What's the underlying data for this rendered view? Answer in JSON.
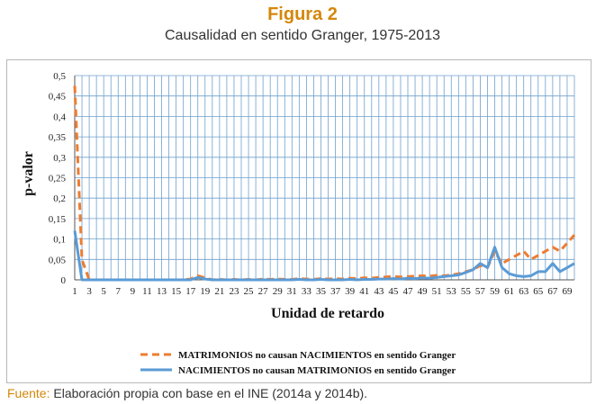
{
  "figure": {
    "title": "Figura 2",
    "subtitle": "Causalidad en sentido Granger, 1975-2013"
  },
  "source": {
    "label": "Fuente:",
    "text": " Elaboración propia con base en el INE (2014a y 2014b)."
  },
  "colors": {
    "title": "#d4870a",
    "grid": "#6fa0cc",
    "series_dashed": "#ed7d31",
    "series_solid": "#5b9bd5"
  },
  "chart_data": {
    "type": "line",
    "title": "",
    "xlabel": "Unidad de retardo",
    "ylabel": "p-valor",
    "x": [
      1,
      2,
      3,
      4,
      5,
      6,
      7,
      8,
      9,
      10,
      11,
      12,
      13,
      14,
      15,
      16,
      17,
      18,
      19,
      20,
      21,
      22,
      23,
      24,
      25,
      26,
      27,
      28,
      29,
      30,
      31,
      32,
      33,
      34,
      35,
      36,
      37,
      38,
      39,
      40,
      41,
      42,
      43,
      44,
      45,
      46,
      47,
      48,
      49,
      50,
      51,
      52,
      53,
      54,
      55,
      56,
      57,
      58,
      59,
      60,
      61,
      62,
      63,
      64,
      65,
      66,
      67,
      68,
      69,
      70
    ],
    "x_tick_labels": [
      "1",
      "3",
      "5",
      "7",
      "9",
      "11",
      "13",
      "15",
      "17",
      "19",
      "21",
      "23",
      "25",
      "27",
      "29",
      "31",
      "33",
      "35",
      "37",
      "39",
      "41",
      "43",
      "45",
      "47",
      "49",
      "51",
      "53",
      "55",
      "57",
      "59",
      "61",
      "63",
      "65",
      "67",
      "69"
    ],
    "ylim": [
      0,
      0.5
    ],
    "y_tick_labels": [
      "0",
      "0,05",
      "0,1",
      "0,15",
      "0,2",
      "0,25",
      "0,3",
      "0,35",
      "0,4",
      "0,45",
      "0,5"
    ],
    "grid": true,
    "legend_position": "bottom",
    "series": [
      {
        "name": "MATRIMONIOS no causan  NACIMIENTOS en sentido Granger",
        "style": "dashed",
        "color": "#ed7d31",
        "values": [
          0.475,
          0.05,
          0.0,
          0.0,
          0.0,
          0.0,
          0.0,
          0.0,
          0.0,
          0.0,
          0.0,
          0.0,
          0.0,
          0.0,
          0.0,
          0.0,
          0.002,
          0.01,
          0.005,
          0.0,
          0.001,
          0.0,
          0.001,
          0.0,
          0.001,
          0.0,
          0.002,
          0.001,
          0.002,
          0.001,
          0.001,
          0.003,
          0.002,
          0.001,
          0.003,
          0.002,
          0.003,
          0.002,
          0.004,
          0.003,
          0.005,
          0.004,
          0.006,
          0.007,
          0.008,
          0.007,
          0.008,
          0.009,
          0.01,
          0.009,
          0.011,
          0.01,
          0.012,
          0.015,
          0.02,
          0.025,
          0.035,
          0.03,
          0.07,
          0.04,
          0.05,
          0.06,
          0.07,
          0.05,
          0.06,
          0.07,
          0.08,
          0.07,
          0.09,
          0.11
        ]
      },
      {
        "name": "NACIMIENTOS no causan MATRIMONIOS en sentido Granger",
        "style": "solid",
        "color": "#5b9bd5",
        "values": [
          0.12,
          0.0,
          0.0,
          0.0,
          0.0,
          0.0,
          0.0,
          0.0,
          0.0,
          0.0,
          0.0,
          0.0,
          0.0,
          0.0,
          0.0,
          0.0,
          0.0,
          0.006,
          0.002,
          0.0,
          0.0,
          0.0,
          0.0,
          0.0,
          0.0,
          0.0,
          0.0,
          0.0,
          0.0,
          0.0,
          0.0,
          0.001,
          0.0,
          0.0,
          0.001,
          0.0,
          0.0,
          0.0,
          0.001,
          0.0,
          0.001,
          0.001,
          0.002,
          0.002,
          0.003,
          0.002,
          0.004,
          0.003,
          0.005,
          0.004,
          0.006,
          0.008,
          0.01,
          0.012,
          0.018,
          0.025,
          0.04,
          0.03,
          0.08,
          0.03,
          0.015,
          0.01,
          0.008,
          0.01,
          0.02,
          0.02,
          0.04,
          0.02,
          0.03,
          0.04
        ]
      }
    ]
  }
}
